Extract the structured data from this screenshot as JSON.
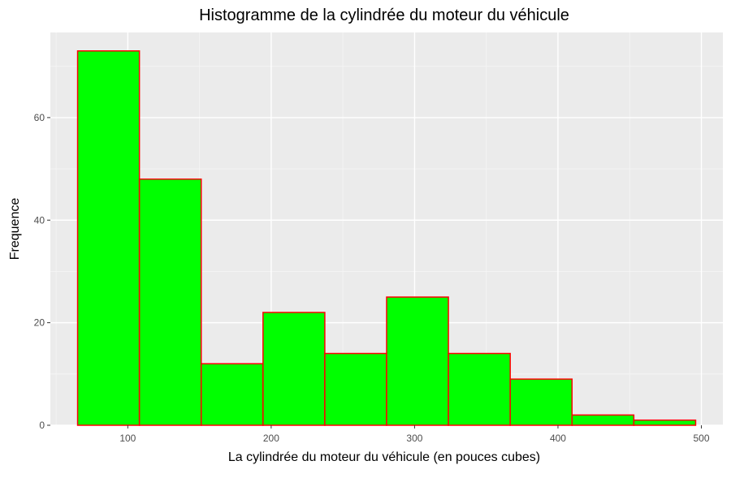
{
  "chart_data": {
    "type": "bar",
    "title": "Histogramme de la cylindrée du moteur du véhicule",
    "xlabel": "La cylindrée du moteur du véhicule (en pouces cubes)",
    "ylabel": "Frequence",
    "xlim": [
      46,
      515
    ],
    "ylim": [
      0,
      76.6
    ],
    "x_ticks": [
      100,
      200,
      300,
      400,
      500
    ],
    "y_ticks": [
      0,
      20,
      40,
      60
    ],
    "bins": [
      {
        "start": 65.0,
        "end": 108.1,
        "count": 73
      },
      {
        "start": 108.1,
        "end": 151.2,
        "count": 48
      },
      {
        "start": 151.2,
        "end": 194.3,
        "count": 12
      },
      {
        "start": 194.3,
        "end": 237.4,
        "count": 22
      },
      {
        "start": 237.4,
        "end": 280.5,
        "count": 14
      },
      {
        "start": 280.5,
        "end": 323.6,
        "count": 25
      },
      {
        "start": 323.6,
        "end": 366.7,
        "count": 14
      },
      {
        "start": 366.7,
        "end": 409.8,
        "count": 9
      },
      {
        "start": 409.8,
        "end": 452.9,
        "count": 2
      },
      {
        "start": 452.9,
        "end": 496.0,
        "count": 1
      }
    ],
    "grid": true,
    "colors": {
      "panel_background": "#ebebeb",
      "grid_major": "#ffffff",
      "grid_minor": "#f5f5f5",
      "bar_fill": "#00ff00",
      "bar_outline": "#ff0000",
      "tick_text": "#4d4d4d",
      "tick_mark": "#333333"
    }
  }
}
